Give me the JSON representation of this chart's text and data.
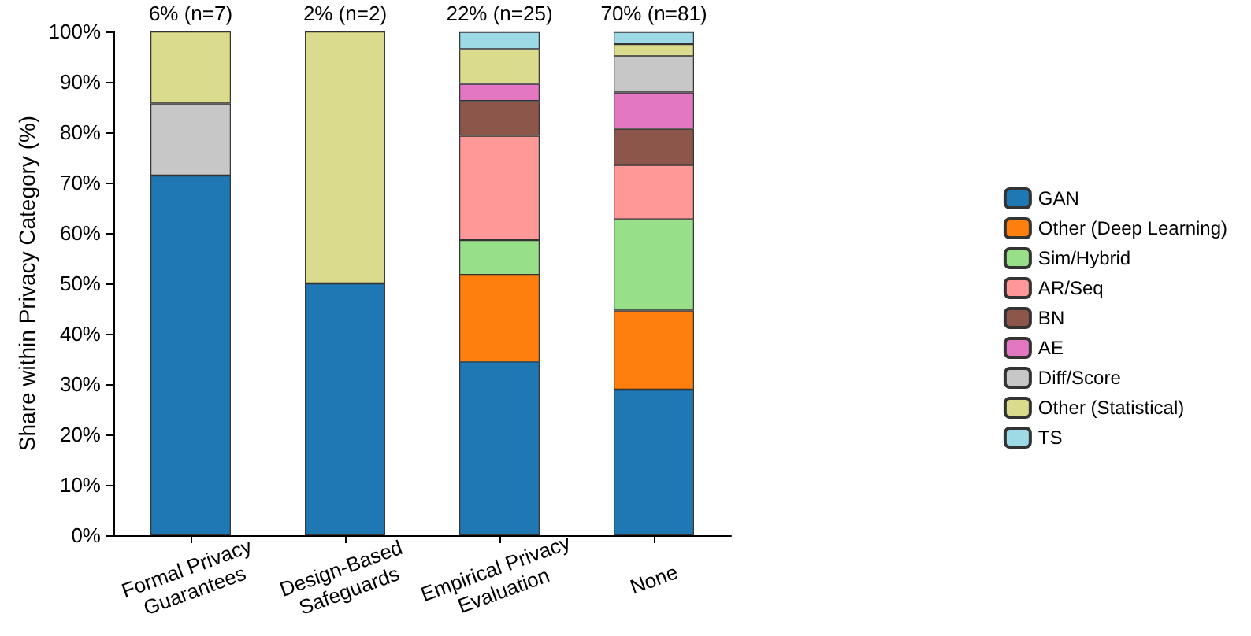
{
  "chart_data": {
    "type": "bar",
    "stacked": true,
    "ylabel": "Share within Privacy Category (%)",
    "categories": [
      "Formal Privacy\nGuarantees",
      "Design-Based\nSafeguards",
      "Empirical Privacy\nEvaluation",
      "None"
    ],
    "series": [
      {
        "name": "GAN",
        "color": "#1f77b4",
        "values": [
          71.4,
          50,
          34.5,
          28.9
        ]
      },
      {
        "name": "Other (Deep Learning)",
        "color": "#ff7f0e",
        "values": [
          null,
          null,
          17.2,
          15.7
        ]
      },
      {
        "name": "Sim/Hybrid",
        "color": "#98df8a",
        "values": [
          null,
          null,
          6.9,
          18.1
        ]
      },
      {
        "name": "AR/Seq",
        "color": "#ff9896",
        "values": [
          null,
          null,
          20.7,
          10.8
        ]
      },
      {
        "name": "BN",
        "color": "#8c564b",
        "values": [
          null,
          null,
          6.9,
          7.2
        ]
      },
      {
        "name": "AE",
        "color": "#e377c2",
        "values": [
          null,
          null,
          3.4,
          7.2
        ]
      },
      {
        "name": "Diff/Score",
        "color": "#c7c7c7",
        "values": [
          14.3,
          null,
          null,
          7.2
        ]
      },
      {
        "name": "Other (Statistical)",
        "color": "#dbdb8d",
        "values": [
          14.3,
          50,
          6.9,
          2.4
        ]
      },
      {
        "name": "TS",
        "color": "#9edae5",
        "values": [
          null,
          null,
          3.4,
          2.4
        ]
      }
    ],
    "ylim": [
      0,
      100
    ],
    "yticks": [
      {
        "value": 0,
        "label": "0%"
      },
      {
        "value": 10,
        "label": "10%"
      },
      {
        "value": 20,
        "label": "20%"
      },
      {
        "value": 30,
        "label": "30%"
      },
      {
        "value": 40,
        "label": "40%"
      },
      {
        "value": 50,
        "label": "50%"
      },
      {
        "value": 60,
        "label": "60%"
      },
      {
        "value": 70,
        "label": "70%"
      },
      {
        "value": 80,
        "label": "80%"
      },
      {
        "value": 90,
        "label": "90%"
      },
      {
        "value": 100,
        "label": "100%"
      }
    ],
    "annotations": [
      {
        "text": "6% (n=7)",
        "x": "Formal Privacy\nGuarantees",
        "y": 100
      },
      {
        "text": "2% (n=2)",
        "x": "Design-Based\nSafeguards",
        "y": 100
      },
      {
        "text": "22% (n=25)",
        "x": "Empirical Privacy\nEvaluation",
        "y": 100
      },
      {
        "text": "70% (n=81)",
        "x": "None",
        "y": 100
      }
    ],
    "grid": false,
    "legend": "right"
  }
}
